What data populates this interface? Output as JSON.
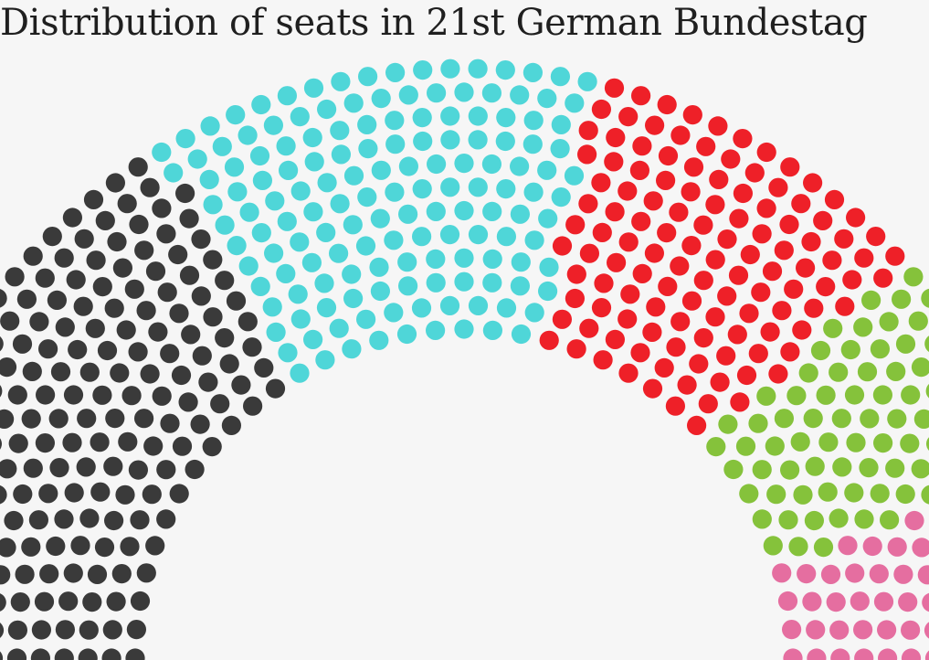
{
  "chart_data": {
    "type": "parliament",
    "title": "Distribution of seats in 21st German Bundestag",
    "total_seats": 630,
    "series": [
      {
        "name": "",
        "seats": 208,
        "color": "#3a3a3a"
      },
      {
        "name": "",
        "seats": 152,
        "color": "#4fd6d8"
      },
      {
        "name": "",
        "seats": 120,
        "color": "#ee2028"
      },
      {
        "name": "",
        "seats": 85,
        "color": "#85c23b"
      },
      {
        "name": "",
        "seats": 64,
        "color": "#e56ea0"
      }
    ]
  }
}
